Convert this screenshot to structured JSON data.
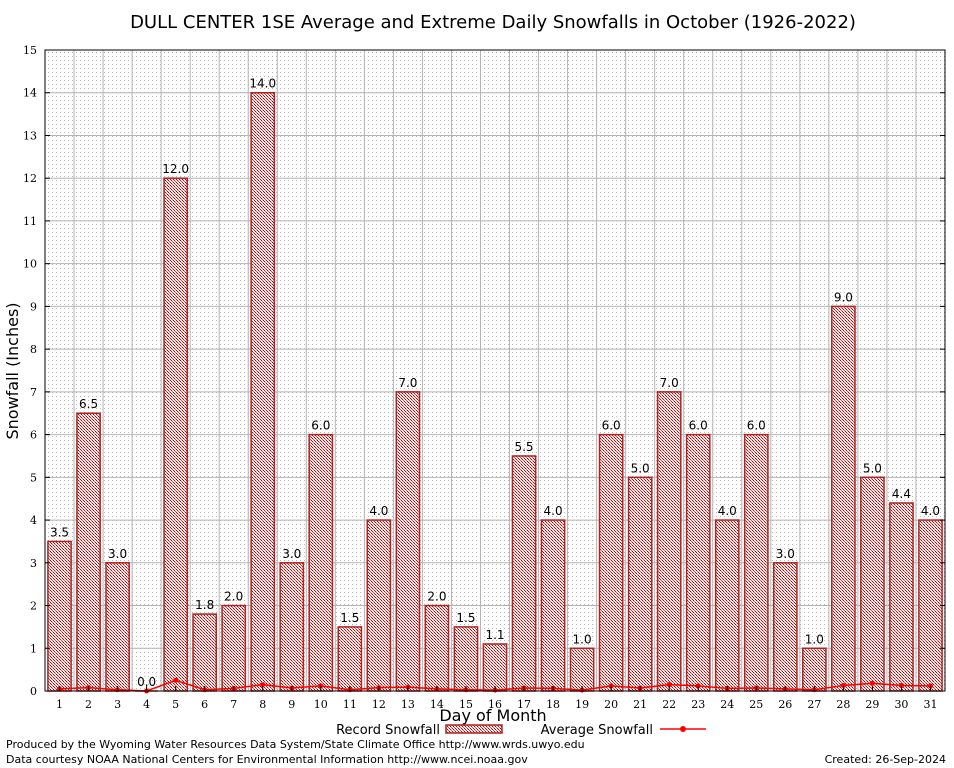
{
  "chart_data": {
    "type": "bar",
    "title": "DULL CENTER 1SE Average and Extreme Daily Snowfalls in October (1926-2022)",
    "xlabel": "Day of Month",
    "ylabel": "Snowfall (Inches)",
    "ylim": [
      0,
      15
    ],
    "yticks": [
      "0",
      "1",
      "2",
      "3",
      "4",
      "5",
      "6",
      "7",
      "8",
      "9",
      "10",
      "11",
      "12",
      "13",
      "14",
      "15"
    ],
    "grid": true,
    "legend_position": "bottom",
    "categories": [
      "1",
      "2",
      "3",
      "4",
      "5",
      "6",
      "7",
      "8",
      "9",
      "10",
      "11",
      "12",
      "13",
      "14",
      "15",
      "16",
      "17",
      "18",
      "19",
      "20",
      "21",
      "22",
      "23",
      "24",
      "25",
      "26",
      "27",
      "28",
      "29",
      "30",
      "31"
    ],
    "series": [
      {
        "name": "Record Snowfall",
        "type": "bar",
        "values": [
          3.5,
          6.5,
          3.0,
          0.0,
          12.0,
          1.8,
          2.0,
          14.0,
          3.0,
          6.0,
          1.5,
          4.0,
          7.0,
          2.0,
          1.5,
          1.1,
          5.5,
          4.0,
          1.0,
          6.0,
          5.0,
          7.0,
          6.0,
          4.0,
          6.0,
          3.0,
          1.0,
          9.0,
          5.0,
          4.4,
          4.0
        ],
        "labels": [
          "3.5",
          "6.5",
          "3.0",
          "0.0",
          "12.0",
          "1.8",
          "2.0",
          "14.0",
          "3.0",
          "6.0",
          "1.5",
          "4.0",
          "7.0",
          "2.0",
          "1.5",
          "1.1",
          "5.5",
          "4.0",
          "1.0",
          "6.0",
          "5.0",
          "7.0",
          "6.0",
          "4.0",
          "6.0",
          "3.0",
          "1.0",
          "9.0",
          "5.0",
          "4.4",
          "4.0"
        ],
        "color": "#b22222"
      },
      {
        "name": "Average Snowfall",
        "type": "line",
        "values": [
          0.05,
          0.08,
          0.03,
          0.0,
          0.25,
          0.03,
          0.06,
          0.15,
          0.07,
          0.12,
          0.03,
          0.08,
          0.09,
          0.05,
          0.03,
          0.02,
          0.07,
          0.06,
          0.02,
          0.12,
          0.07,
          0.15,
          0.12,
          0.06,
          0.07,
          0.05,
          0.03,
          0.13,
          0.18,
          0.13,
          0.12
        ],
        "color": "#ff0000"
      }
    ]
  },
  "footer": {
    "produced_by": "Produced by the Wyoming Water Resources Data System/State Climate Office http://www.wrds.uwyo.edu",
    "courtesy": "Data courtesy NOAA National Centers for Environmental Information http://www.ncei.noaa.gov",
    "created": "Created:  26-Sep-2024"
  }
}
